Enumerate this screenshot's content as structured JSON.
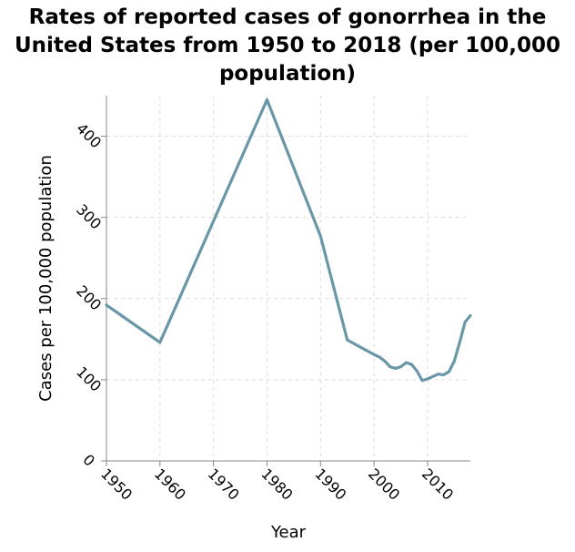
{
  "chart_data": {
    "type": "line",
    "title": "Rates of reported cases of gonorrhea in the United States from 1950 to 2018 (per 100,000 population)",
    "xlabel": "Year",
    "ylabel": "Cases per 100,000 population",
    "x_ticks": [
      1950,
      1960,
      1970,
      1980,
      1990,
      2000,
      2010
    ],
    "y_ticks": [
      0,
      100,
      200,
      300,
      400
    ],
    "xlim": [
      1950,
      2018
    ],
    "ylim": [
      0,
      450
    ],
    "grid": true,
    "colors": {
      "line": "#6a97a8",
      "grid": "#dddddd",
      "axis": "#888888"
    },
    "series": [
      {
        "x": [
          1950,
          1960,
          1980,
          1990,
          1995,
          2000,
          2001,
          2002,
          2003,
          2004,
          2005,
          2006,
          2007,
          2008,
          2009,
          2010,
          2011,
          2012,
          2013,
          2014,
          2015,
          2016,
          2017,
          2018
        ],
        "y": [
          192,
          146,
          445,
          277,
          149,
          131,
          128,
          123,
          116,
          114,
          116,
          121,
          119,
          111,
          99,
          101,
          104,
          107,
          106,
          110,
          123,
          146,
          171,
          179
        ]
      }
    ]
  }
}
